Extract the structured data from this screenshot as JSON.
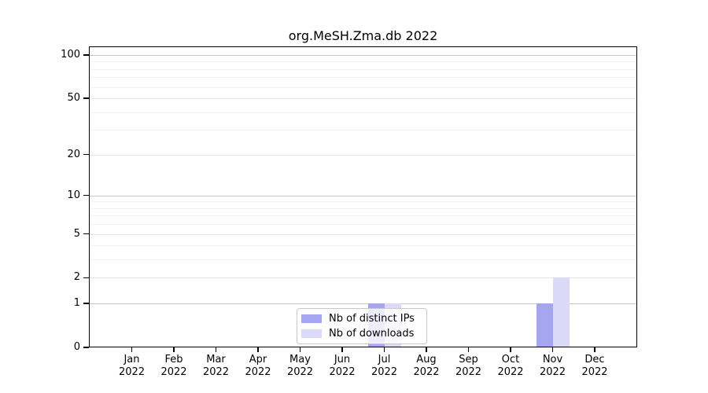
{
  "chart_data": {
    "type": "bar",
    "title": "org.MeSH.Zma.db 2022",
    "categories": [
      "Jan",
      "Feb",
      "Mar",
      "Apr",
      "May",
      "Jun",
      "Jul",
      "Aug",
      "Sep",
      "Oct",
      "Nov",
      "Dec"
    ],
    "year_suffix": "2022",
    "series": [
      {
        "name": "Nb of distinct IPs",
        "color": "#a5a5f1",
        "values": [
          0,
          0,
          0,
          0,
          0,
          0,
          1,
          0,
          0,
          0,
          1,
          0
        ]
      },
      {
        "name": "Nb of downloads",
        "color": "#dadaf8",
        "values": [
          0,
          0,
          0,
          0,
          0,
          0,
          1,
          0,
          0,
          0,
          2,
          0
        ]
      }
    ],
    "y_scale": "log1p",
    "ylim": [
      0,
      115
    ],
    "y_ticks": [
      0,
      1,
      2,
      5,
      10,
      20,
      50,
      100
    ],
    "y_tick_labels": [
      "0",
      "1",
      "2",
      "5",
      "10",
      "20",
      "50",
      "100"
    ],
    "grid": true,
    "grid_values_major": [
      1,
      10,
      100
    ],
    "grid_values_mid": [
      2,
      5,
      20,
      50
    ],
    "grid_values_minor": [
      3,
      4,
      6,
      7,
      8,
      9,
      30,
      40,
      60,
      70,
      80,
      90
    ],
    "legend_position": "bottom-center"
  },
  "colors": {
    "grid_major": "#c6c6c6",
    "grid_mid": "#e4e4e4",
    "grid_minor": "#f1f1f1",
    "axis": "#000000",
    "legend_border": "#c9c9c9"
  }
}
